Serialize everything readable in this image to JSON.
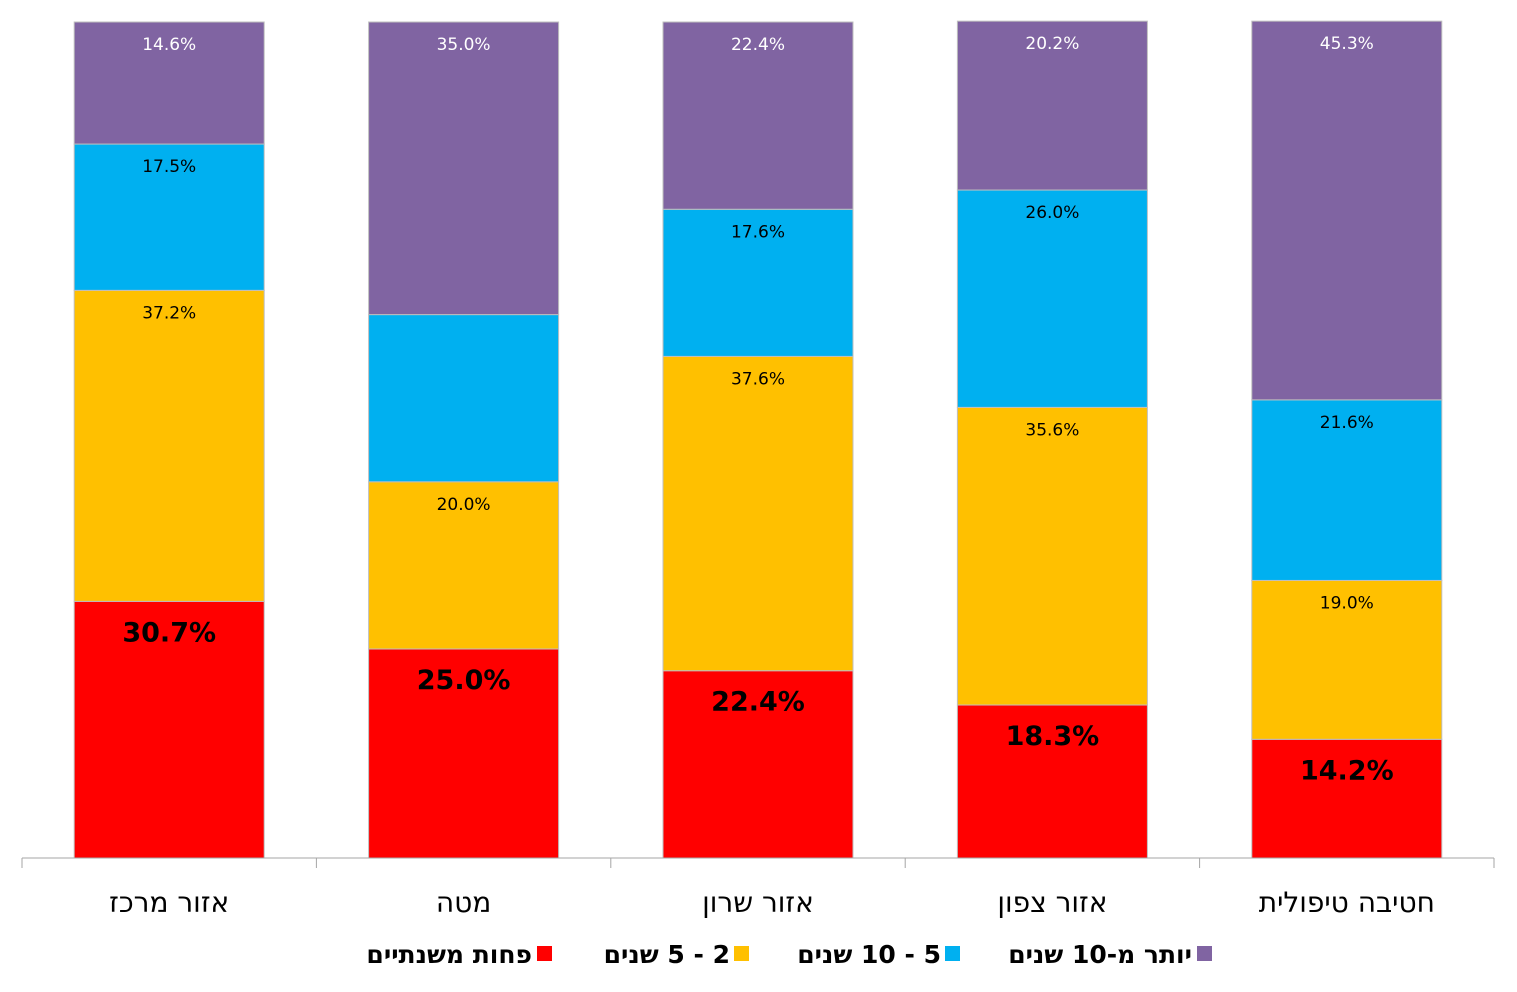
{
  "chart_data": {
    "type": "bar",
    "stacked": true,
    "direction": "rtl",
    "categories": [
      "אזור מרכז",
      "מטה",
      "אזור שרון",
      "אזור צפון",
      "חטיבה טיפולית"
    ],
    "series": [
      {
        "name": "פחות משנתיים",
        "color": "#FF0000",
        "values": [
          30.7,
          25.0,
          22.4,
          18.3,
          14.2
        ],
        "labels": [
          "30.7%",
          "25.0%",
          "22.4%",
          "18.3%",
          "14.2%"
        ],
        "label_emphasis": true
      },
      {
        "name": "2 - 5 שנים",
        "color": "#FFC000",
        "values": [
          37.2,
          20.0,
          37.6,
          35.6,
          19.0
        ],
        "labels": [
          "37.2%",
          "20.0%",
          "37.6%",
          "35.6%",
          "19.0%"
        ]
      },
      {
        "name": "5 - 10 שנים",
        "color": "#00B0F0",
        "values": [
          17.5,
          20.0,
          17.6,
          26.0,
          21.6
        ],
        "labels": [
          "17.5%",
          "",
          "17.6%",
          "26.0%",
          "21.6%"
        ]
      },
      {
        "name": "יותר מ-10 שנים",
        "color": "#8064A2",
        "values": [
          14.6,
          35.0,
          22.4,
          20.2,
          45.3
        ],
        "labels": [
          "14.6%",
          "35.0%",
          "22.4%",
          "20.2%",
          "45.3%"
        ]
      }
    ],
    "ylim": [
      0,
      100
    ],
    "grid": false,
    "legend_position": "bottom"
  }
}
